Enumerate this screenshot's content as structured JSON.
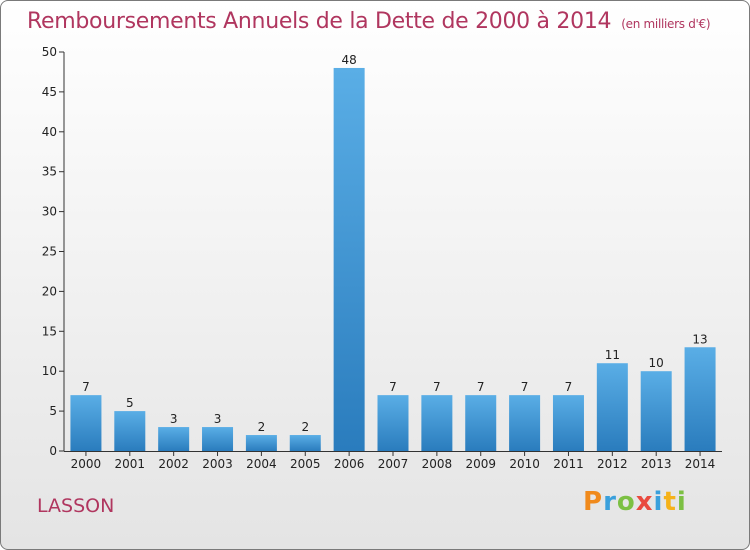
{
  "header": {
    "title": "Remboursements Annuels de la Dette de 2000 à 2014",
    "unit": "(en milliers d'€)"
  },
  "footer": {
    "place": "LASSON",
    "logo": {
      "letters": [
        "P",
        "r",
        "o",
        "x",
        "i",
        "t",
        "i"
      ],
      "colors": [
        "#f08a1c",
        "#3aa0dc",
        "#7cc043",
        "#e94a3f",
        "#3aa0dc",
        "#f5b21a",
        "#7cc043"
      ]
    }
  },
  "chart_data": {
    "type": "bar",
    "title": "Remboursements Annuels de la Dette de 2000 à 2014",
    "categories": [
      "2000",
      "2001",
      "2002",
      "2003",
      "2004",
      "2005",
      "2006",
      "2007",
      "2008",
      "2009",
      "2010",
      "2011",
      "2012",
      "2013",
      "2014"
    ],
    "values": [
      7,
      5,
      3,
      3,
      2,
      2,
      48,
      7,
      7,
      7,
      7,
      7,
      11,
      10,
      13
    ],
    "ylim": [
      0,
      50
    ],
    "yticks": [
      0,
      5,
      10,
      15,
      20,
      25,
      30,
      35,
      40,
      45,
      50
    ],
    "grid": false,
    "bar_color_top": "#5aaee6",
    "bar_color_bottom": "#2a7cbd"
  }
}
